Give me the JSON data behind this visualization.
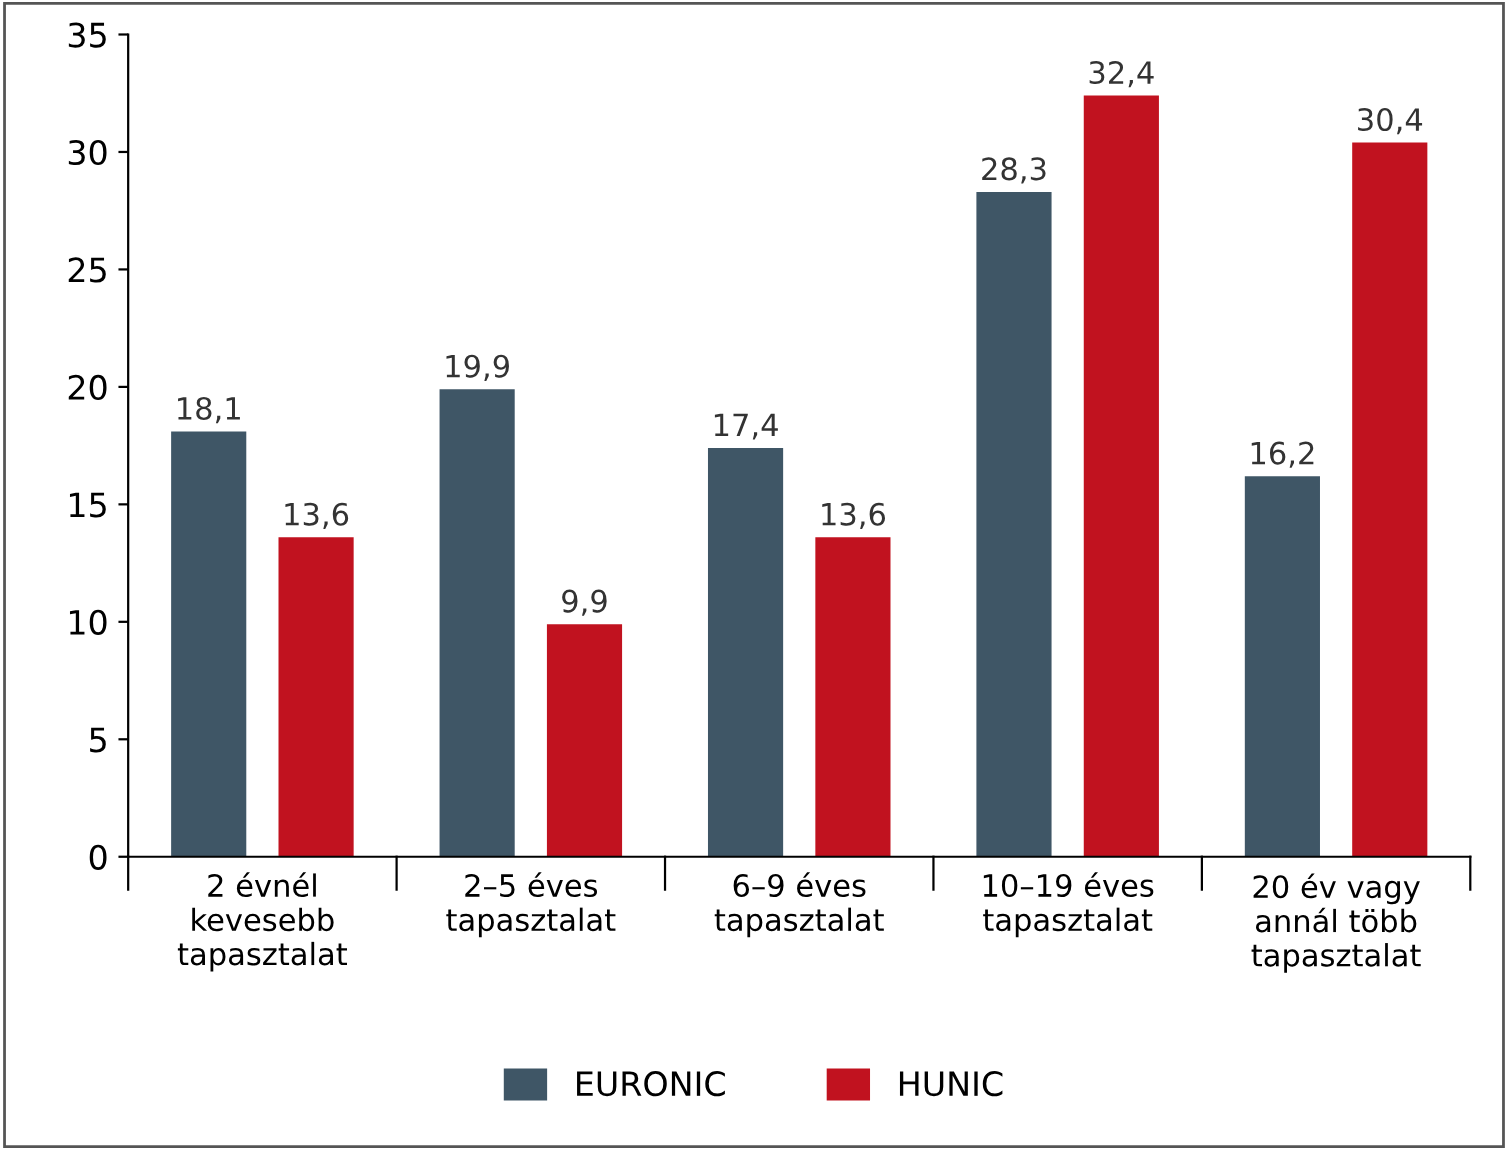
{
  "chart_data": {
    "type": "bar",
    "categories": [
      "2 évnél\nkevesebb\ntapasztalat",
      "2–5 éves\ntapasztalat",
      "6–9 éves\ntapasztalat",
      "10–19 éves\ntapasztalat",
      "20 év vagy\nannál több\ntapasztalat"
    ],
    "series": [
      {
        "name": "EURONIC",
        "color": "#3f5666",
        "values": [
          18.1,
          19.9,
          17.4,
          28.3,
          16.2
        ],
        "value_labels": [
          "18,1",
          "19,9",
          "17,4",
          "28,3",
          "16,2"
        ]
      },
      {
        "name": "HUNIC",
        "color": "#c1121f",
        "values": [
          13.6,
          9.9,
          13.6,
          32.4,
          30.4
        ],
        "value_labels": [
          "13,6",
          "9,9",
          "13,6",
          "32,4",
          "30,4"
        ]
      }
    ],
    "ylim": [
      0,
      35
    ],
    "yticks": [
      0,
      5,
      10,
      15,
      20,
      25,
      30,
      35
    ],
    "grid": false,
    "legend": "bottom"
  }
}
